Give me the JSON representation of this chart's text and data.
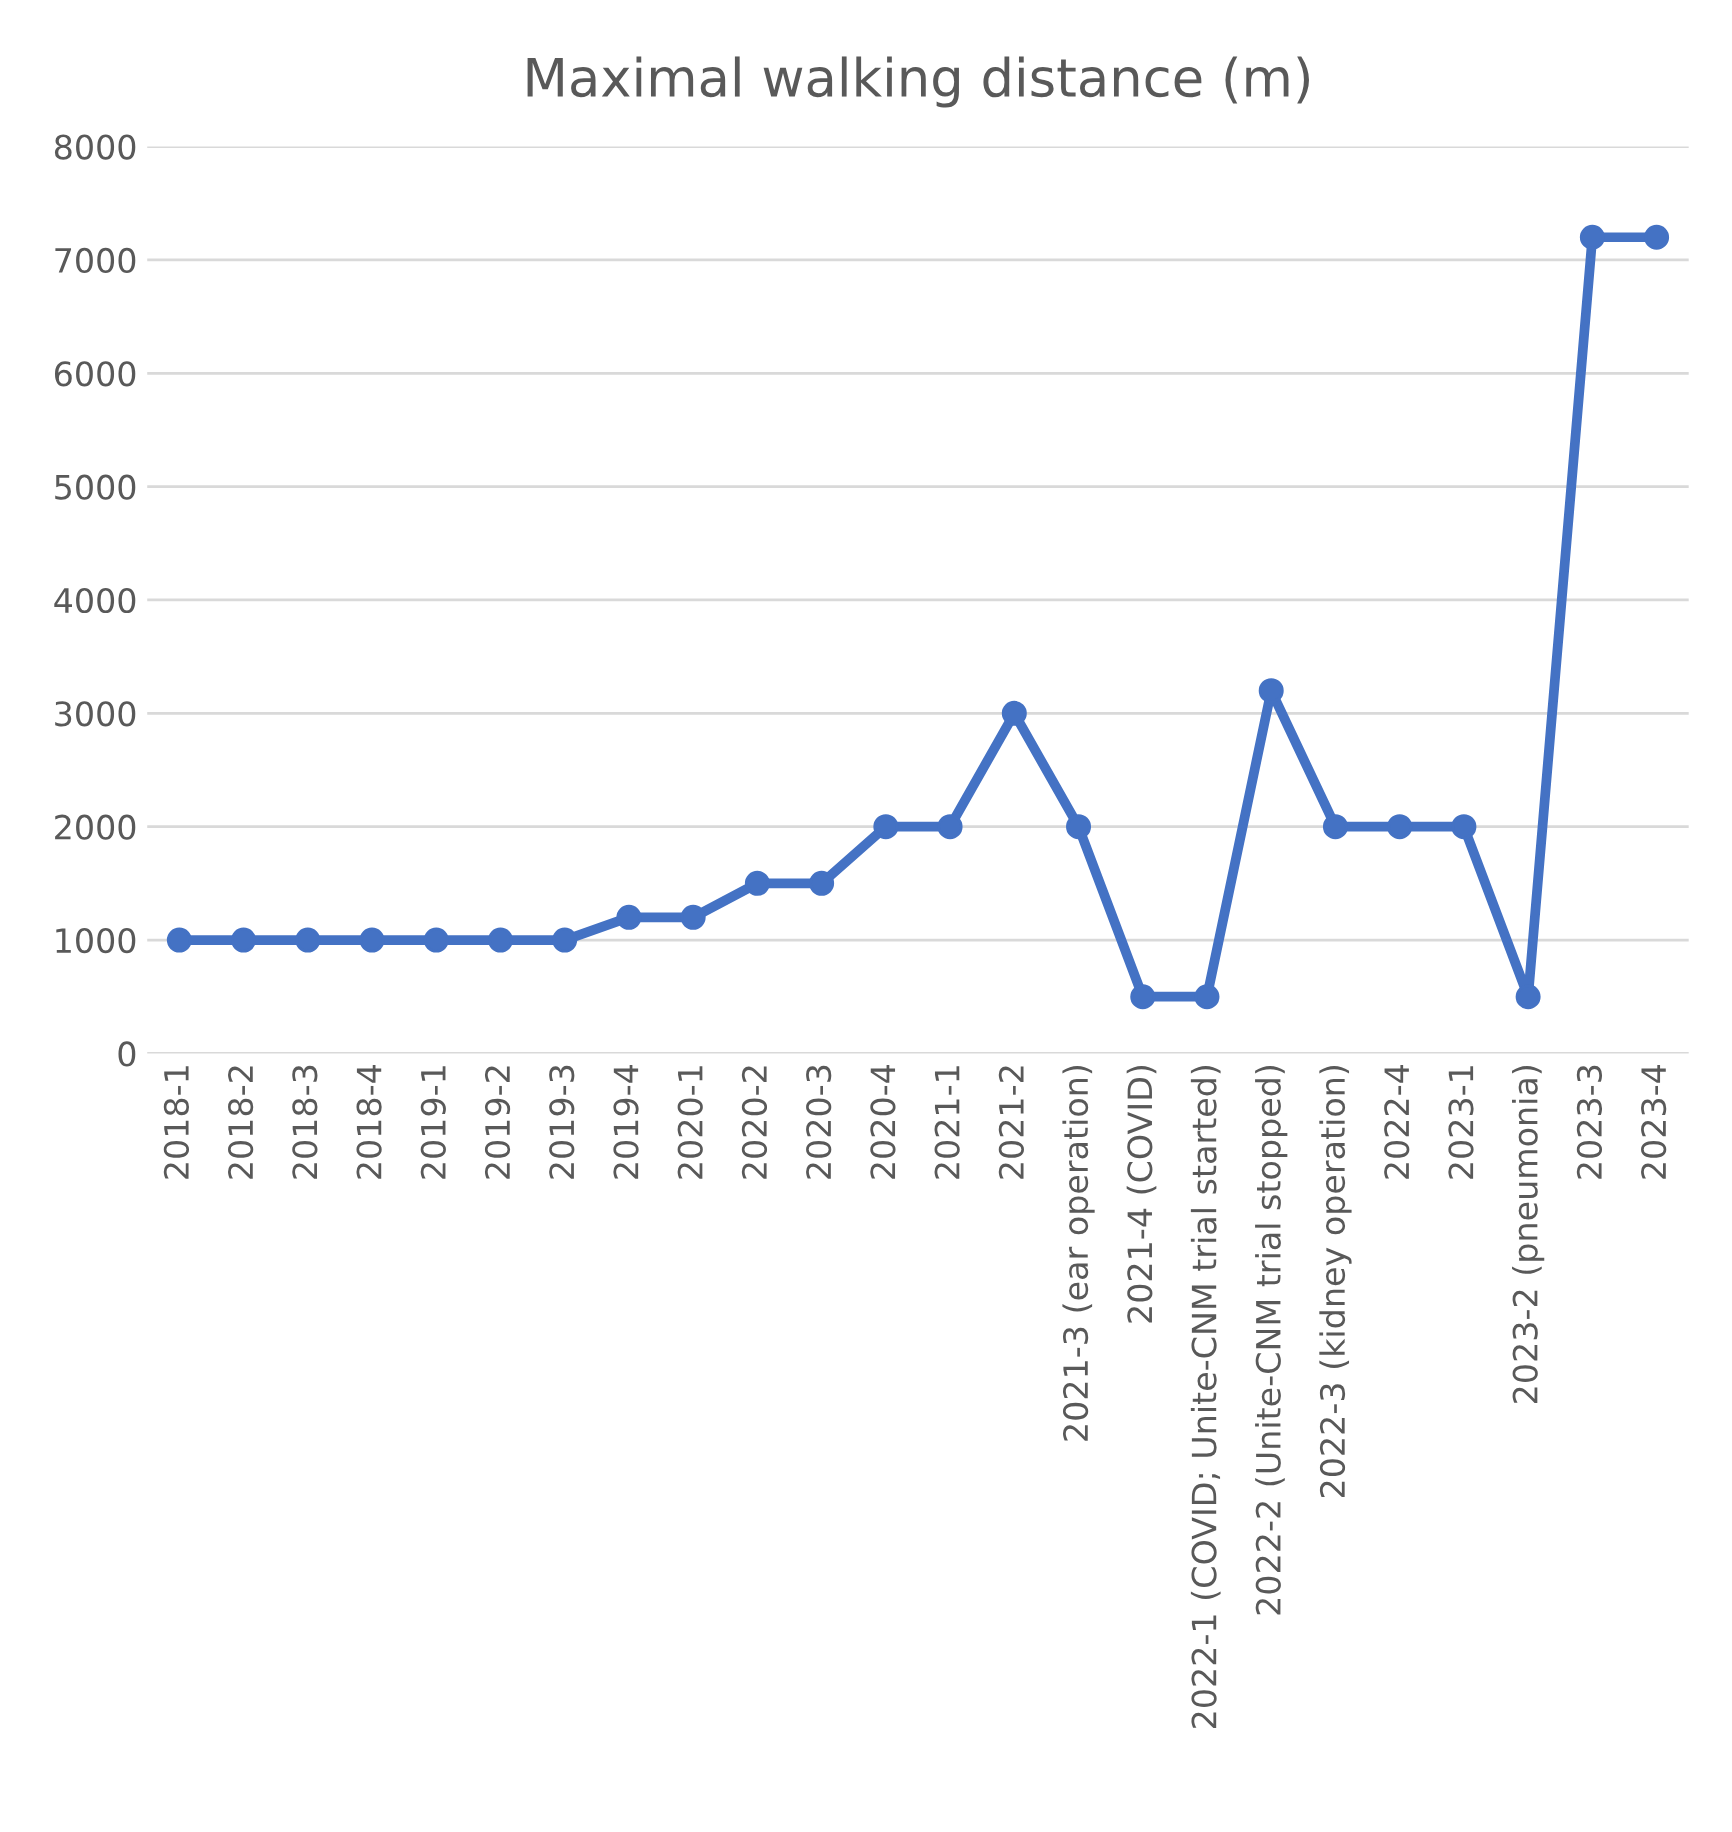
{
  "chart_data": {
    "type": "line",
    "title": "Maximal walking distance (m)",
    "categories": [
      "2018-1",
      "2018-2",
      "2018-3",
      "2018-4",
      "2019-1",
      "2019-2",
      "2019-3",
      "2019-4",
      "2020-1",
      "2020-2",
      "2020-3",
      "2020-4",
      "2021-1",
      "2021-2",
      "2021-3 (ear operation)",
      "2021-4 (COVID)",
      "2022-1 (COVID; Unite-CNM trial started)",
      "2022-2 (Unite-CNM trial stopped)",
      "2022-3 (kidney operation)",
      "2022-4",
      "2023-1",
      "2023-2 (pneumonia)",
      "2023-3",
      "2023-4"
    ],
    "series": [
      {
        "color": "#4472c4",
        "values": [
          1000,
          1000,
          1000,
          1000,
          1000,
          1000,
          1000,
          1200,
          1200,
          1500,
          1500,
          2000,
          2000,
          3000,
          2000,
          500,
          500,
          3200,
          2000,
          2000,
          2000,
          500,
          7200,
          7200
        ]
      }
    ],
    "ylim": [
      0,
      8000
    ],
    "yticks": [
      0,
      1000,
      2000,
      3000,
      4000,
      5000,
      6000,
      7000,
      8000
    ],
    "grid": "y",
    "marker": "circle",
    "line_style": "solid"
  }
}
